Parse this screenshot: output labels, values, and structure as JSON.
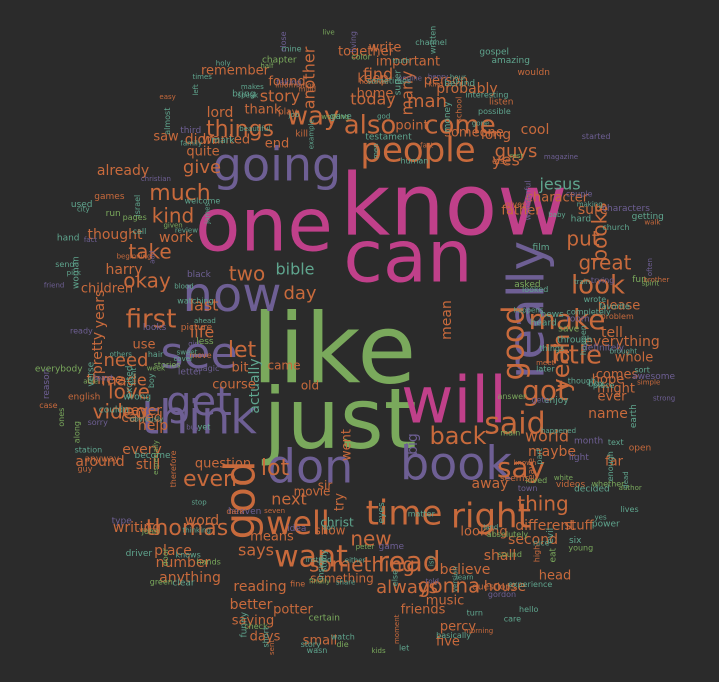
{
  "palette": {
    "background": "#2b2b2b",
    "green": "#7aa95c",
    "magenta": "#c0408a",
    "purple": "#6e5f94",
    "orange": "#c86a3c",
    "teal": "#5fa58e"
  },
  "words": [
    {
      "t": "like",
      "c": "green"
    },
    {
      "t": "know",
      "c": "magenta"
    },
    {
      "t": "just",
      "c": "green"
    },
    {
      "t": "can",
      "c": "magenta"
    },
    {
      "t": "one",
      "c": "magenta"
    },
    {
      "t": "will",
      "c": "magenta"
    },
    {
      "t": "going",
      "c": "purple"
    },
    {
      "t": "really",
      "c": "purple"
    },
    {
      "t": "now",
      "c": "purple"
    },
    {
      "t": "book",
      "c": "purple"
    },
    {
      "t": "don",
      "c": "purple"
    },
    {
      "t": "think",
      "c": "purple"
    },
    {
      "t": "see",
      "c": "purple"
    },
    {
      "t": "get",
      "c": "purple"
    },
    {
      "t": "god",
      "c": "orange"
    },
    {
      "t": "time",
      "c": "orange"
    },
    {
      "t": "right",
      "c": "orange"
    },
    {
      "t": "well",
      "c": "orange"
    },
    {
      "t": "people",
      "c": "orange"
    },
    {
      "t": "want",
      "c": "orange"
    },
    {
      "t": "good",
      "c": "orange"
    },
    {
      "t": "said",
      "c": "orange"
    },
    {
      "t": "read",
      "c": "orange"
    },
    {
      "t": "say",
      "c": "orange"
    },
    {
      "t": "got",
      "c": "orange"
    },
    {
      "t": "make",
      "c": "orange"
    },
    {
      "t": "yeah",
      "c": "orange"
    },
    {
      "t": "little",
      "c": "orange"
    },
    {
      "t": "look",
      "c": "orange"
    },
    {
      "t": "come",
      "c": "orange"
    },
    {
      "t": "also",
      "c": "orange"
    },
    {
      "t": "way",
      "c": "orange"
    },
    {
      "t": "first",
      "c": "orange"
    },
    {
      "t": "back",
      "c": "orange"
    },
    {
      "t": "things",
      "c": "orange"
    },
    {
      "t": "much",
      "c": "orange"
    },
    {
      "t": "let",
      "c": "orange"
    },
    {
      "t": "lot",
      "c": "orange"
    },
    {
      "t": "even",
      "c": "orange"
    },
    {
      "t": "thomas",
      "c": "orange"
    },
    {
      "t": "video",
      "c": "orange"
    },
    {
      "t": "love",
      "c": "orange"
    },
    {
      "t": "something",
      "c": "orange"
    },
    {
      "t": "gonna",
      "c": "orange"
    },
    {
      "t": "new",
      "c": "orange"
    },
    {
      "t": "thing",
      "c": "orange"
    },
    {
      "t": "great",
      "c": "orange"
    },
    {
      "t": "put",
      "c": "orange"
    },
    {
      "t": "books",
      "c": "orange"
    },
    {
      "t": "kind",
      "c": "orange"
    },
    {
      "t": "take",
      "c": "orange"
    },
    {
      "t": "okay",
      "c": "orange"
    },
    {
      "t": "two",
      "c": "orange"
    },
    {
      "t": "day",
      "c": "orange"
    },
    {
      "t": "need",
      "c": "orange"
    },
    {
      "t": "made",
      "c": "orange"
    },
    {
      "t": "give",
      "c": "orange"
    },
    {
      "t": "man",
      "c": "orange"
    },
    {
      "t": "guys",
      "c": "orange"
    },
    {
      "t": "world",
      "c": "orange"
    },
    {
      "t": "jesus",
      "c": "teal"
    },
    {
      "t": "bible",
      "c": "teal"
    },
    {
      "t": "many",
      "c": "orange"
    },
    {
      "t": "today",
      "c": "orange"
    },
    {
      "t": "find",
      "c": "orange"
    },
    {
      "t": "always",
      "c": "orange"
    },
    {
      "t": "next",
      "c": "orange"
    },
    {
      "t": "says",
      "c": "orange"
    },
    {
      "t": "around",
      "c": "orange"
    },
    {
      "t": "never",
      "c": "orange"
    },
    {
      "t": "still",
      "c": "orange"
    },
    {
      "t": "big",
      "c": "purple"
    },
    {
      "t": "yes",
      "c": "orange"
    },
    {
      "t": "last",
      "c": "orange"
    },
    {
      "t": "life",
      "c": "orange"
    },
    {
      "t": "another",
      "c": "orange"
    },
    {
      "t": "story",
      "c": "orange"
    },
    {
      "t": "lord",
      "c": "orange"
    },
    {
      "t": "every",
      "c": "orange"
    },
    {
      "t": "actually",
      "c": "teal"
    },
    {
      "t": "three",
      "c": "orange"
    },
    {
      "t": "harry",
      "c": "orange"
    },
    {
      "t": "work",
      "c": "orange"
    },
    {
      "t": "years",
      "c": "orange"
    },
    {
      "t": "different",
      "c": "orange"
    },
    {
      "t": "tell",
      "c": "orange"
    },
    {
      "t": "everything",
      "c": "orange"
    },
    {
      "t": "sure",
      "c": "orange"
    },
    {
      "t": "maybe",
      "c": "orange"
    },
    {
      "t": "name",
      "c": "orange"
    },
    {
      "t": "away",
      "c": "orange"
    },
    {
      "t": "second",
      "c": "orange"
    },
    {
      "t": "shall",
      "c": "orange"
    },
    {
      "t": "believe",
      "c": "orange"
    },
    {
      "t": "house",
      "c": "orange"
    },
    {
      "t": "writing",
      "c": "orange"
    },
    {
      "t": "place",
      "c": "orange"
    },
    {
      "t": "anything",
      "c": "orange"
    },
    {
      "t": "better",
      "c": "orange"
    },
    {
      "t": "reading",
      "c": "orange"
    },
    {
      "t": "number",
      "c": "orange"
    },
    {
      "t": "word",
      "c": "orange"
    },
    {
      "t": "mean",
      "c": "orange"
    },
    {
      "t": "called",
      "c": "orange"
    },
    {
      "t": "help",
      "c": "orange"
    },
    {
      "t": "pretty",
      "c": "orange"
    },
    {
      "t": "thought",
      "c": "orange"
    },
    {
      "t": "already",
      "c": "orange"
    },
    {
      "t": "didn",
      "c": "orange"
    },
    {
      "t": "quite",
      "c": "orange"
    },
    {
      "t": "thank",
      "c": "orange"
    },
    {
      "t": "write",
      "c": "orange"
    },
    {
      "t": "probably",
      "c": "orange"
    },
    {
      "t": "long",
      "c": "orange"
    },
    {
      "t": "cool",
      "c": "orange"
    },
    {
      "t": "course",
      "c": "orange"
    },
    {
      "t": "bit",
      "c": "orange"
    },
    {
      "t": "came",
      "c": "orange"
    },
    {
      "t": "old",
      "c": "orange"
    },
    {
      "t": "use",
      "c": "orange"
    },
    {
      "t": "hope",
      "c": "orange"
    },
    {
      "t": "might",
      "c": "orange"
    },
    {
      "t": "ever",
      "c": "orange"
    },
    {
      "t": "music",
      "c": "orange"
    },
    {
      "t": "friends",
      "c": "orange"
    },
    {
      "t": "potter",
      "c": "orange"
    },
    {
      "t": "something",
      "c": "orange"
    },
    {
      "t": "keep",
      "c": "orange"
    },
    {
      "t": "home",
      "c": "orange"
    },
    {
      "t": "end",
      "c": "orange"
    },
    {
      "t": "found",
      "c": "orange"
    },
    {
      "t": "remember",
      "c": "orange"
    },
    {
      "t": "wanted",
      "c": "orange"
    },
    {
      "t": "saw",
      "c": "orange"
    },
    {
      "t": "went",
      "c": "orange"
    },
    {
      "t": "try",
      "c": "orange"
    },
    {
      "t": "show",
      "c": "orange"
    },
    {
      "t": "sir",
      "c": "orange"
    },
    {
      "t": "movie",
      "c": "orange"
    },
    {
      "t": "christ",
      "c": "teal"
    },
    {
      "t": "children",
      "c": "orange"
    },
    {
      "t": "important",
      "c": "orange"
    },
    {
      "t": "together",
      "c": "orange"
    },
    {
      "t": "someone",
      "c": "orange"
    },
    {
      "t": "saying",
      "c": "orange"
    },
    {
      "t": "days",
      "c": "orange"
    },
    {
      "t": "question",
      "c": "orange"
    },
    {
      "t": "comes",
      "c": "orange"
    },
    {
      "t": "whole",
      "c": "orange"
    },
    {
      "t": "please",
      "c": "orange"
    },
    {
      "t": "percy",
      "c": "orange"
    },
    {
      "t": "five",
      "c": "orange"
    },
    {
      "t": "small",
      "c": "orange"
    },
    {
      "t": "means",
      "c": "orange"
    },
    {
      "t": "character",
      "c": "orange"
    },
    {
      "t": "father",
      "c": "orange"
    },
    {
      "t": "far",
      "c": "orange"
    },
    {
      "t": "stuff",
      "c": "orange"
    },
    {
      "t": "head",
      "c": "orange"
    },
    {
      "t": "looking",
      "c": "orange"
    },
    {
      "t": "person",
      "c": "orange"
    },
    {
      "t": "point",
      "c": "orange"
    }
  ],
  "small_words": [
    "others",
    "obviously",
    "review",
    "less",
    "add",
    "walk",
    "become",
    "care",
    "blood",
    "author",
    "magic",
    "however",
    "enjoy",
    "looked",
    "station",
    "certain",
    "characters",
    "seven",
    "makes",
    "things",
    "lives",
    "given",
    "taking",
    "moment",
    "woman",
    "instead",
    "eyes",
    "week",
    "sorry",
    "mind",
    "dead",
    "piece",
    "send",
    "young",
    "couple",
    "gives",
    "channel",
    "almost",
    "wrote",
    "color",
    "magazine",
    "case",
    "isn",
    "train",
    "learn",
    "check",
    "heaven",
    "move",
    "text",
    "evil",
    "watching",
    "working",
    "started",
    "fast",
    "nice",
    "son",
    "hard",
    "finally",
    "trying",
    "beginning",
    "interesting",
    "james",
    "driver",
    "along",
    "gets",
    "school",
    "cover",
    "israel",
    "happen",
    "main",
    "often",
    "wouldn",
    "city",
    "short",
    "speak",
    "answer",
    "friend",
    "known",
    "wrong",
    "knows",
    "welcome",
    "loved",
    "engine",
    "leave",
    "through",
    "though",
    "sort",
    "fun",
    "idea",
    "voice",
    "call",
    "part",
    "ahead",
    "kids",
    "living",
    "sent",
    "else",
    "either",
    "box",
    "asked",
    "ready",
    "brother",
    "human",
    "funny",
    "amazing",
    "hands",
    "black",
    "listen",
    "earth",
    "boy",
    "study",
    "white",
    "light",
    "therefore",
    "baby",
    "family",
    "mine",
    "run",
    "type",
    "videos",
    "times",
    "six",
    "excited",
    "eat",
    "told",
    "guy",
    "men",
    "let",
    "left",
    "pages",
    "looks",
    "king",
    "story",
    "holy",
    "later",
    "rest",
    "third",
    "else",
    "job",
    "film",
    "hair",
    "live",
    "letter",
    "fine",
    "god",
    "beautiful",
    "wasn",
    "able",
    "reason",
    "information",
    "bring",
    "yes",
    "matter",
    "especially",
    "least",
    "easy",
    "gone",
    "gave",
    "power",
    "john",
    "game",
    "high",
    "watch",
    "used",
    "hour",
    "ones",
    "definitely",
    "morning",
    "land",
    "news",
    "pick",
    "save",
    "strong",
    "questions",
    "clear",
    "behind",
    "decided",
    "absolutely",
    "wonderful",
    "games",
    "happened",
    "brought",
    "money",
    "everybody",
    "awesome",
    "picture",
    "super",
    "truth",
    "church",
    "door",
    "gordon",
    "meet",
    "happens",
    "turn",
    "basically",
    "chapter",
    "room",
    "play",
    "front",
    "sometimes",
    "written",
    "stories",
    "close",
    "english",
    "verse",
    "testament",
    "couldn",
    "whether",
    "henry",
    "problem",
    "mark",
    "hand",
    "version",
    "half",
    "month",
    "simple",
    "share",
    "experience",
    "completely",
    "peter",
    "christian",
    "open",
    "getting",
    "making",
    "enough",
    "spirit",
    "girl",
    "kill",
    "sweet",
    "example",
    "possible",
    "green",
    "buy",
    "anyway",
    "heard",
    "yet",
    "stop",
    "die",
    "town",
    "dark",
    "gospel",
    "hello",
    "thinking",
    "sound",
    "fact",
    "seems",
    "favorite",
    "inside"
  ]
}
